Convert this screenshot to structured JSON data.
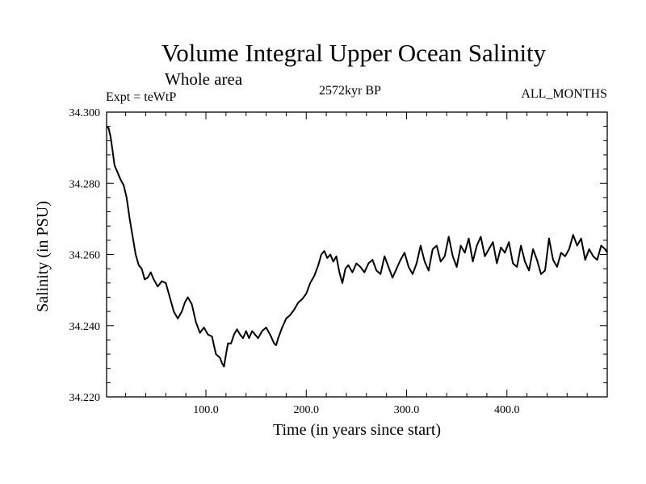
{
  "chart_data": {
    "type": "line",
    "title": "Volume Integral Upper Ocean Salinity",
    "subtitle": "Whole area",
    "experiment": "Expt = teWtP",
    "period": "2572kyr BP",
    "months": "ALL_MONTHS",
    "xlabel": "Time (in years since start)",
    "ylabel": "Salinity (in PSU)",
    "xlim": [
      1,
      500
    ],
    "ylim": [
      34.22,
      34.3
    ],
    "x_ticks": [
      {
        "value": 100,
        "label": "100.0"
      },
      {
        "value": 200,
        "label": "200.0"
      },
      {
        "value": 300,
        "label": "300.0"
      },
      {
        "value": 400,
        "label": "400.0"
      }
    ],
    "y_ticks": [
      {
        "value": 34.22,
        "label": "34.220"
      },
      {
        "value": 34.24,
        "label": "34.240"
      },
      {
        "value": 34.26,
        "label": "34.260"
      },
      {
        "value": 34.28,
        "label": "34.280"
      },
      {
        "value": 34.3,
        "label": "34.300"
      }
    ],
    "series": [
      {
        "name": "Salinity",
        "x": [
          1,
          3,
          5,
          7,
          9,
          12,
          15,
          18,
          21,
          24,
          27,
          30,
          33,
          36,
          39,
          42,
          45,
          48,
          52,
          56,
          60,
          64,
          68,
          72,
          76,
          79,
          82,
          86,
          90,
          94,
          98,
          102,
          106,
          110,
          114,
          116,
          118,
          120,
          122,
          125,
          128,
          131,
          134,
          137,
          140,
          143,
          146,
          149,
          152,
          156,
          160,
          164,
          168,
          170,
          172,
          176,
          180,
          184,
          188,
          192,
          196,
          200,
          204,
          208,
          212,
          215,
          218,
          221,
          224,
          227,
          230,
          233,
          236,
          239,
          242,
          246,
          250,
          254,
          258,
          262,
          266,
          270,
          274,
          278,
          282,
          286,
          290,
          294,
          298,
          302,
          306,
          310,
          314,
          318,
          322,
          326,
          330,
          334,
          338,
          342,
          346,
          350,
          354,
          358,
          362,
          366,
          370,
          374,
          378,
          382,
          386,
          390,
          394,
          398,
          402,
          406,
          410,
          414,
          418,
          422,
          426,
          430,
          434,
          438,
          442,
          446,
          450,
          454,
          458,
          462,
          466,
          470,
          474,
          478,
          482,
          486,
          490,
          494,
          498,
          500
        ],
        "values": [
          34.296,
          34.2955,
          34.293,
          34.289,
          34.285,
          34.283,
          34.281,
          34.2795,
          34.276,
          34.27,
          34.265,
          34.26,
          34.257,
          34.256,
          34.253,
          34.2535,
          34.255,
          34.253,
          34.251,
          34.2525,
          34.252,
          34.248,
          34.244,
          34.242,
          34.244,
          34.2465,
          34.248,
          34.246,
          34.241,
          34.238,
          34.2395,
          34.2375,
          34.237,
          34.232,
          34.231,
          34.2295,
          34.2285,
          34.232,
          34.235,
          34.235,
          34.2375,
          34.239,
          34.2375,
          34.2365,
          34.2385,
          34.2365,
          34.2385,
          34.2375,
          34.2365,
          34.2385,
          34.2395,
          34.2375,
          34.235,
          34.2345,
          34.2365,
          34.2395,
          34.242,
          34.243,
          34.2445,
          34.2465,
          34.2475,
          34.249,
          34.252,
          34.254,
          34.257,
          34.26,
          34.261,
          34.259,
          34.26,
          34.258,
          34.2595,
          34.255,
          34.252,
          34.256,
          34.257,
          34.255,
          34.2575,
          34.2565,
          34.255,
          34.2575,
          34.2585,
          34.2555,
          34.2545,
          34.2595,
          34.2565,
          34.2535,
          34.256,
          34.2585,
          34.2605,
          34.2565,
          34.2545,
          34.2575,
          34.2625,
          34.258,
          34.2555,
          34.2615,
          34.2625,
          34.258,
          34.2595,
          34.265,
          34.2595,
          34.2565,
          34.2625,
          34.2605,
          34.2645,
          34.258,
          34.2625,
          34.265,
          34.2595,
          34.2615,
          34.2635,
          34.2575,
          34.262,
          34.2605,
          34.2635,
          34.2575,
          34.2565,
          34.2625,
          34.258,
          34.2555,
          34.2615,
          34.2585,
          34.2545,
          34.2555,
          34.2645,
          34.2585,
          34.2565,
          34.2605,
          34.2595,
          34.2615,
          34.2655,
          34.2625,
          34.2645,
          34.2585,
          34.2615,
          34.2595,
          34.2585,
          34.2625,
          34.2615,
          34.2605
        ]
      }
    ]
  }
}
